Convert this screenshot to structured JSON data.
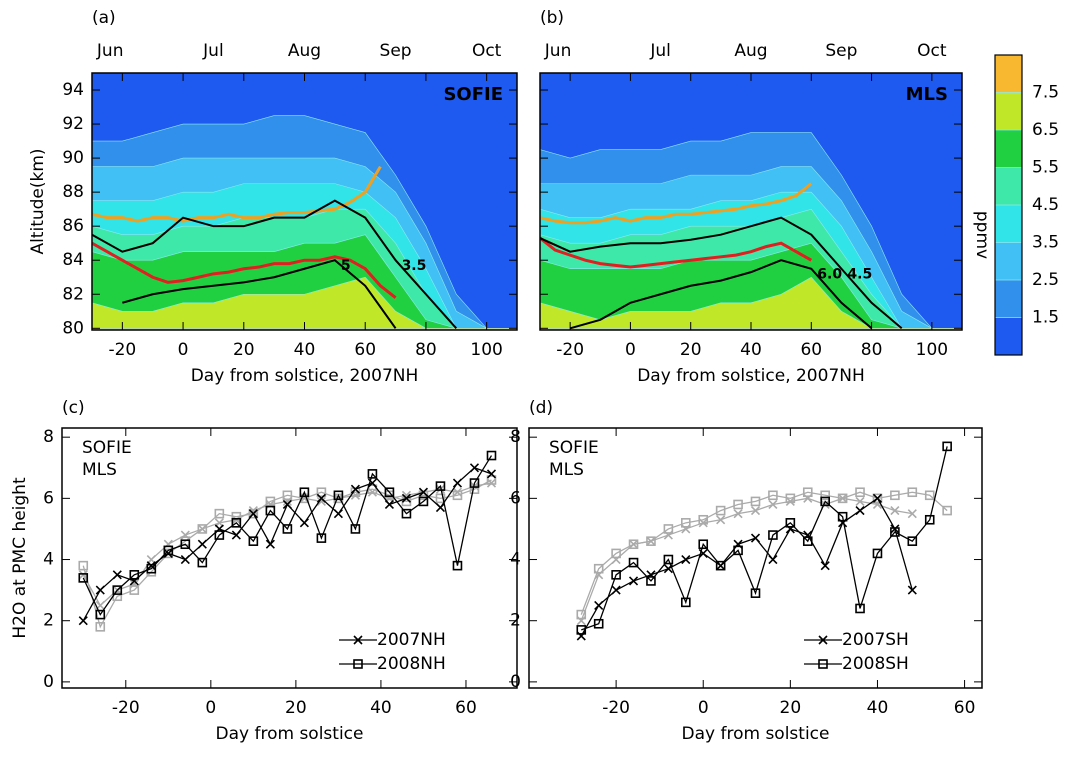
{
  "chart_data": [
    {
      "type": "contour",
      "panel_label": "(a)",
      "tag": "SOFIE",
      "tag_color": "#e8c020",
      "xlim": [
        -30,
        110
      ],
      "ylim": [
        79.9,
        95
      ],
      "xticks": [
        -20,
        0,
        20,
        40,
        60,
        80,
        100
      ],
      "yticks": [
        80,
        82,
        84,
        86,
        88,
        90,
        92,
        94
      ],
      "top_ticks": [
        {
          "value": -24,
          "label": "Jun"
        },
        {
          "value": 10,
          "label": "Jul"
        },
        {
          "value": 40,
          "label": "Aug"
        },
        {
          "value": 70,
          "label": "Sep"
        },
        {
          "value": 100,
          "label": "Oct"
        }
      ],
      "x_label": "Day from solstice, 2007NH",
      "y_label": "Altitude(km)",
      "show_ytick_labels": true,
      "grid_x": [
        -30,
        -20,
        -10,
        0,
        10,
        20,
        30,
        40,
        50,
        60,
        70,
        80,
        90,
        100
      ],
      "fields": [
        {
          "values": [
            91,
            91,
            91.5,
            92,
            92,
            92,
            92.5,
            92.5,
            92,
            91.5,
            89,
            86,
            82,
            80
          ]
        },
        {
          "values": [
            89.5,
            89.5,
            89.5,
            90,
            90,
            90,
            90,
            90,
            90,
            89.5,
            88,
            85,
            81,
            80
          ]
        },
        {
          "values": [
            87.5,
            87.5,
            87.5,
            88,
            88,
            88.5,
            88.5,
            88.5,
            88.5,
            88,
            86.5,
            83.5,
            80,
            80
          ]
        },
        {
          "values": [
            86,
            85.5,
            85.5,
            86,
            86,
            86.5,
            86.5,
            86.5,
            87,
            87,
            85,
            82,
            80,
            80
          ]
        },
        {
          "values": [
            84.5,
            84,
            84,
            84.5,
            84.5,
            84.5,
            84.5,
            85,
            85,
            85.5,
            83,
            80.5,
            80,
            80
          ]
        },
        {
          "values": [
            81.5,
            81,
            81,
            81.5,
            81.5,
            82,
            82,
            82,
            82.5,
            83,
            81,
            80,
            80,
            80
          ]
        },
        {
          "values": [
            80,
            80,
            80,
            80,
            80,
            80,
            80,
            80,
            80,
            80,
            80,
            80,
            80,
            80
          ]
        }
      ],
      "lines": [
        {
          "color": "#f0a020",
          "x": [
            -30,
            -25,
            -20,
            -15,
            -10,
            -5,
            0,
            5,
            10,
            15,
            20,
            25,
            30,
            35,
            40,
            45,
            50,
            55,
            60,
            65
          ],
          "values": [
            86.7,
            86.5,
            86.5,
            86.3,
            86.5,
            86.5,
            86.3,
            86.5,
            86.5,
            86.7,
            86.5,
            86.5,
            86.7,
            86.8,
            86.8,
            86.9,
            87,
            87.4,
            88,
            89.5
          ]
        },
        {
          "color": "#e02020",
          "x": [
            -30,
            -25,
            -20,
            -15,
            -10,
            -5,
            0,
            5,
            10,
            15,
            20,
            25,
            30,
            35,
            40,
            45,
            50,
            55,
            60,
            65,
            70
          ],
          "values": [
            85,
            84.5,
            84,
            83.5,
            83,
            82.7,
            82.8,
            83,
            83.2,
            83.3,
            83.5,
            83.6,
            83.8,
            83.8,
            84,
            84,
            84.2,
            84,
            83.5,
            82.5,
            81.8
          ]
        },
        {
          "color": "#000000",
          "label": "3.5",
          "x": [
            -30,
            -20,
            -10,
            0,
            10,
            20,
            30,
            40,
            50,
            60,
            70,
            80,
            90
          ],
          "values": [
            85.5,
            84.5,
            85,
            86.5,
            86,
            86,
            86.5,
            86.5,
            87.5,
            86.5,
            84,
            82,
            80
          ]
        },
        {
          "color": "#000000",
          "label": "5",
          "x": [
            -20,
            -10,
            0,
            10,
            20,
            30,
            40,
            50,
            60,
            70
          ],
          "values": [
            81.5,
            82,
            82.3,
            82.5,
            82.7,
            83,
            83.5,
            84,
            82.5,
            80
          ]
        }
      ]
    },
    {
      "type": "contour",
      "panel_label": "(b)",
      "tag": "MLS",
      "tag_color": "#e8c020",
      "xlim": [
        -30,
        110
      ],
      "ylim": [
        79.9,
        95
      ],
      "xticks": [
        -20,
        0,
        20,
        40,
        60,
        80,
        100
      ],
      "yticks": [
        80,
        82,
        84,
        86,
        88,
        90,
        92,
        94
      ],
      "top_ticks": [
        {
          "value": -24,
          "label": "Jun"
        },
        {
          "value": 10,
          "label": "Jul"
        },
        {
          "value": 40,
          "label": "Aug"
        },
        {
          "value": 70,
          "label": "Sep"
        },
        {
          "value": 100,
          "label": "Oct"
        }
      ],
      "x_label": "Day from solstice, 2007NH",
      "show_ytick_labels": false,
      "grid_x": [
        -30,
        -20,
        -10,
        0,
        10,
        20,
        30,
        40,
        50,
        60,
        70,
        80,
        90,
        100
      ],
      "fields": [
        {
          "values": [
            90.5,
            90,
            90.5,
            90.5,
            90.5,
            91,
            91,
            91.5,
            91.5,
            91.5,
            89,
            86,
            82,
            80
          ]
        },
        {
          "values": [
            88.5,
            88.5,
            88.5,
            88.5,
            88.5,
            89,
            89,
            89,
            89.5,
            89.5,
            87.5,
            84.5,
            81,
            80
          ]
        },
        {
          "values": [
            87,
            86.5,
            86.5,
            87,
            87,
            87,
            87.5,
            87.5,
            88,
            88,
            86,
            83,
            80,
            80
          ]
        },
        {
          "values": [
            85.5,
            85,
            85,
            85.5,
            85.5,
            86,
            86,
            86,
            86.5,
            87,
            84.5,
            82,
            80,
            80
          ]
        },
        {
          "values": [
            84,
            83.5,
            83.5,
            83.5,
            83.5,
            84,
            84,
            84,
            84.5,
            85,
            83,
            80.5,
            80,
            80
          ]
        },
        {
          "values": [
            81.5,
            81,
            80.5,
            81,
            81,
            81,
            81.5,
            81.5,
            82,
            83,
            81,
            80,
            80,
            80
          ]
        },
        {
          "values": [
            80,
            80,
            80,
            80,
            80,
            80,
            80,
            80,
            80,
            80,
            80,
            80,
            80,
            80
          ]
        }
      ],
      "lines": [
        {
          "color": "#f0a020",
          "x": [
            -30,
            -25,
            -20,
            -15,
            -10,
            -5,
            0,
            5,
            10,
            15,
            20,
            25,
            30,
            35,
            40,
            45,
            50,
            55,
            60
          ],
          "values": [
            86.5,
            86.3,
            86.2,
            86.2,
            86.3,
            86.5,
            86.3,
            86.5,
            86.5,
            86.7,
            86.7,
            86.8,
            86.9,
            87,
            87.2,
            87.3,
            87.5,
            87.8,
            88.5
          ]
        },
        {
          "color": "#e02020",
          "x": [
            -30,
            -25,
            -20,
            -15,
            -10,
            -5,
            0,
            5,
            10,
            15,
            20,
            25,
            30,
            35,
            40,
            45,
            50,
            55,
            60
          ],
          "values": [
            85.3,
            84.6,
            84.3,
            84,
            83.8,
            83.7,
            83.6,
            83.7,
            83.8,
            83.9,
            84,
            84.1,
            84.2,
            84.3,
            84.5,
            84.8,
            85,
            84.5,
            84
          ]
        },
        {
          "color": "#000000",
          "label": "4.5",
          "x": [
            -30,
            -20,
            -10,
            0,
            10,
            20,
            30,
            40,
            50,
            60,
            70,
            80,
            90
          ],
          "values": [
            85.3,
            84.5,
            84.8,
            85,
            85,
            85.2,
            85.5,
            86,
            86.5,
            85.5,
            83.5,
            81.5,
            80
          ]
        },
        {
          "color": "#000000",
          "label": "6.0",
          "x": [
            -20,
            -10,
            0,
            10,
            20,
            30,
            40,
            50,
            60,
            70,
            80
          ],
          "values": [
            80,
            80.5,
            81.5,
            82,
            82.5,
            82.8,
            83.3,
            84,
            83.5,
            81.5,
            80
          ]
        }
      ]
    },
    {
      "type": "line",
      "panel_label": "(c)",
      "xlim": [
        -35,
        72
      ],
      "ylim": [
        -0.2,
        8.3
      ],
      "xticks": [
        -20,
        0,
        20,
        40,
        60
      ],
      "yticks": [
        0,
        2,
        4,
        6,
        8
      ],
      "x_label": "Day from solstice",
      "y_label": "H2O at PMC height",
      "x": [
        -30,
        -26,
        -22,
        -18,
        -14,
        -10,
        -6,
        -2,
        2,
        6,
        10,
        14,
        18,
        22,
        26,
        30,
        34,
        38,
        42,
        46,
        50,
        54,
        58,
        62,
        66
      ],
      "series": [
        {
          "instrument": "SOFIE",
          "year": "2007NH",
          "color": "#000000",
          "marker": "x",
          "values": [
            2.0,
            3.0,
            3.5,
            3.3,
            3.8,
            4.2,
            4.0,
            4.5,
            5.0,
            4.8,
            5.5,
            4.5,
            5.8,
            5.2,
            6.0,
            5.5,
            6.3,
            6.5,
            5.8,
            6.0,
            6.2,
            5.7,
            6.5,
            7.0,
            6.8
          ]
        },
        {
          "instrument": "SOFIE",
          "year": "2008NH",
          "color": "#000000",
          "marker": "square",
          "values": [
            3.4,
            2.2,
            3.0,
            3.5,
            3.7,
            4.3,
            4.5,
            3.9,
            4.8,
            5.2,
            4.6,
            5.6,
            5.0,
            6.2,
            4.7,
            6.1,
            5.0,
            6.8,
            6.2,
            5.5,
            5.9,
            6.4,
            3.8,
            6.5,
            7.4
          ]
        },
        {
          "instrument": "MLS",
          "year": "2007NH",
          "color": "#aaaaaa",
          "marker": "x",
          "values": [
            3.5,
            2.5,
            3.0,
            3.2,
            4.0,
            4.5,
            4.8,
            5.0,
            5.2,
            5.3,
            5.6,
            5.8,
            5.9,
            6.0,
            5.9,
            6.0,
            6.1,
            6.2,
            6.0,
            6.1,
            6.2,
            6.3,
            6.2,
            6.4,
            6.5
          ]
        },
        {
          "instrument": "MLS",
          "year": "2008NH",
          "color": "#aaaaaa",
          "marker": "square",
          "values": [
            3.8,
            1.8,
            2.8,
            3.0,
            3.6,
            4.2,
            4.6,
            5.0,
            5.5,
            5.4,
            5.5,
            5.9,
            6.1,
            6.0,
            6.2,
            6.0,
            6.2,
            6.3,
            6.1,
            5.9,
            6.1,
            6.0,
            6.1,
            6.3,
            6.6
          ]
        }
      ]
    },
    {
      "type": "line",
      "panel_label": "(d)",
      "xlim": [
        -40,
        64
      ],
      "ylim": [
        -0.2,
        8.3
      ],
      "xticks": [
        -20,
        0,
        20,
        40,
        60
      ],
      "yticks": [
        0,
        2,
        4,
        6,
        8
      ],
      "x_label": "Day from solstice",
      "x": [
        -28,
        -24,
        -20,
        -16,
        -12,
        -8,
        -4,
        0,
        4,
        8,
        12,
        16,
        20,
        24,
        28,
        32,
        36,
        40,
        44,
        48,
        52,
        56
      ],
      "series": [
        {
          "instrument": "SOFIE",
          "year": "2007SH",
          "color": "#000000",
          "marker": "x",
          "values": [
            1.5,
            2.5,
            3.0,
            3.3,
            3.5,
            3.7,
            4.0,
            4.2,
            3.8,
            4.5,
            4.7,
            4.0,
            5.0,
            4.8,
            3.8,
            5.2,
            5.6,
            6.0,
            5.0,
            3.0,
            null,
            null
          ]
        },
        {
          "instrument": "SOFIE",
          "year": "2008SH",
          "color": "#000000",
          "marker": "square",
          "values": [
            1.7,
            1.9,
            3.5,
            3.9,
            3.3,
            4.0,
            2.6,
            4.5,
            3.8,
            4.3,
            2.9,
            4.8,
            5.2,
            4.6,
            5.9,
            5.4,
            2.4,
            4.2,
            4.9,
            4.6,
            5.3,
            7.7
          ]
        },
        {
          "instrument": "MLS",
          "year": "2007SH",
          "color": "#aaaaaa",
          "marker": "x",
          "values": [
            2.0,
            3.5,
            4.0,
            4.5,
            4.6,
            4.8,
            5.0,
            5.2,
            5.3,
            5.5,
            5.6,
            5.8,
            5.9,
            6.0,
            5.8,
            6.0,
            5.9,
            5.8,
            5.6,
            5.5,
            null,
            null
          ]
        },
        {
          "instrument": "MLS",
          "year": "2008SH",
          "color": "#aaaaaa",
          "marker": "square",
          "values": [
            2.2,
            3.7,
            4.2,
            4.5,
            4.6,
            5.0,
            5.2,
            5.3,
            5.6,
            5.8,
            5.9,
            6.1,
            6.0,
            6.2,
            6.1,
            6.0,
            6.2,
            6.0,
            6.1,
            6.2,
            6.1,
            5.6
          ]
        }
      ]
    }
  ],
  "colorbar": {
    "label": "ppmv",
    "levels": [
      1.5,
      2.5,
      3.5,
      4.5,
      5.5,
      6.5,
      7.5
    ],
    "colors": [
      "#1f5af0",
      "#3090ec",
      "#40c0f4",
      "#30e4e8",
      "#3ee8a8",
      "#20d040",
      "#c0e828",
      "#f8b830"
    ]
  }
}
